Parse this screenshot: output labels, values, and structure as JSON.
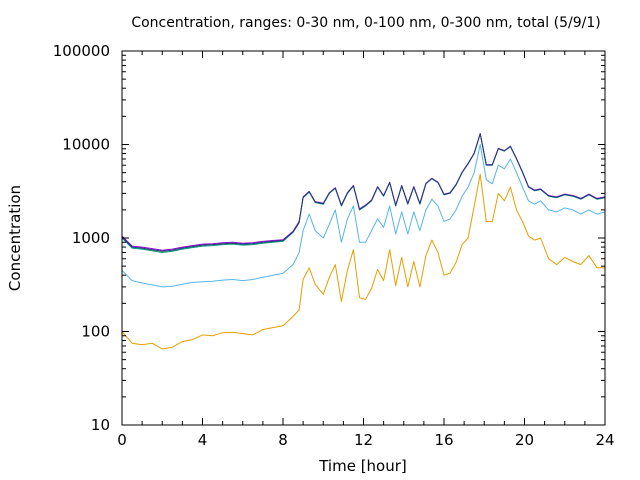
{
  "chart_data": {
    "type": "line",
    "title": "Concentration, ranges: 0-30 nm, 0-100 nm, 0-300 nm, total (5/9/1)",
    "xlabel": "Time [hour]",
    "ylabel": "Concentration",
    "xlim": [
      0,
      24
    ],
    "ylim": [
      10,
      100000
    ],
    "yscale": "log",
    "grid": false,
    "x_ticks": [
      "0",
      "4",
      "8",
      "12",
      "16",
      "20",
      "24"
    ],
    "y_ticks": [
      "10",
      "100",
      "1000",
      "10000",
      "100000"
    ],
    "x": [
      0,
      0.5,
      1,
      1.5,
      2,
      2.5,
      3,
      3.5,
      4,
      4.5,
      5,
      5.5,
      6,
      6.5,
      7,
      7.5,
      8,
      8.5,
      8.8,
      9,
      9.3,
      9.6,
      10,
      10.3,
      10.6,
      10.9,
      11.2,
      11.5,
      11.8,
      12.1,
      12.4,
      12.7,
      13,
      13.3,
      13.6,
      13.9,
      14.2,
      14.5,
      14.8,
      15.1,
      15.4,
      15.7,
      16,
      16.3,
      16.6,
      16.9,
      17.2,
      17.5,
      17.8,
      18.1,
      18.4,
      18.7,
      19,
      19.3,
      19.6,
      19.9,
      20.2,
      20.5,
      20.8,
      21.2,
      21.6,
      22,
      22.4,
      22.8,
      23.2,
      23.6,
      24
    ],
    "series": [
      {
        "color": "#e69f00",
        "values": [
          100,
          75,
          72,
          75,
          65,
          68,
          78,
          82,
          92,
          90,
          97,
          98,
          95,
          92,
          105,
          110,
          115,
          145,
          170,
          360,
          480,
          320,
          250,
          380,
          520,
          210,
          450,
          750,
          230,
          220,
          290,
          460,
          350,
          750,
          310,
          620,
          300,
          560,
          300,
          650,
          950,
          700,
          400,
          420,
          550,
          850,
          1000,
          2200,
          4800,
          1500,
          1500,
          3000,
          2500,
          3500,
          2000,
          1500,
          1050,
          950,
          1000,
          600,
          520,
          620,
          560,
          520,
          650,
          480,
          480
        ]
      },
      {
        "color": "#56b4e9",
        "values": [
          450,
          350,
          330,
          315,
          300,
          305,
          320,
          335,
          340,
          345,
          355,
          360,
          350,
          360,
          380,
          400,
          420,
          520,
          700,
          1200,
          1800,
          1200,
          1000,
          1400,
          2000,
          900,
          1600,
          2200,
          900,
          900,
          1200,
          1600,
          1300,
          2200,
          1100,
          1900,
          1100,
          1900,
          1200,
          2000,
          2600,
          2200,
          1500,
          1600,
          2000,
          2800,
          3500,
          5000,
          10000,
          4200,
          3800,
          6000,
          5500,
          7000,
          5000,
          3500,
          2500,
          2300,
          2500,
          2000,
          1900,
          2100,
          2000,
          1800,
          2000,
          1800,
          1900
        ]
      },
      {
        "color": "#009e73",
        "values": [
          1000,
          780,
          760,
          730,
          700,
          720,
          760,
          790,
          820,
          830,
          850,
          860,
          840,
          850,
          880,
          900,
          920,
          1150,
          1450,
          2700,
          3100,
          2400,
          2300,
          3000,
          3400,
          2200,
          3000,
          3600,
          2000,
          2200,
          2500,
          3500,
          2800,
          3900,
          2200,
          3600,
          2300,
          3500,
          2300,
          3800,
          4300,
          3900,
          2900,
          3000,
          3700,
          5000,
          6200,
          8000,
          13000,
          6000,
          6000,
          9000,
          8500,
          9500,
          7000,
          5000,
          3500,
          3200,
          3300,
          2800,
          2700,
          2900,
          2800,
          2600,
          2900,
          2600,
          2700
        ]
      },
      {
        "color": "#9400d3",
        "values": [
          1050,
          820,
          800,
          770,
          740,
          760,
          800,
          830,
          860,
          870,
          890,
          900,
          880,
          890,
          920,
          940,
          960,
          1180,
          1500,
          2750,
          3150,
          2450,
          2350,
          3050,
          3450,
          2250,
          3050,
          3650,
          2050,
          2250,
          2550,
          3550,
          2850,
          3950,
          2250,
          3650,
          2350,
          3550,
          2350,
          3850,
          4350,
          3950,
          2950,
          3050,
          3750,
          5050,
          6300,
          8100,
          13100,
          6100,
          6100,
          9100,
          8600,
          9600,
          7100,
          5100,
          3550,
          3250,
          3350,
          2850,
          2750,
          2950,
          2850,
          2650,
          2950,
          2650,
          2750
        ]
      },
      {
        "color": "#1f3f7a",
        "values": [
          1020,
          800,
          780,
          750,
          720,
          740,
          780,
          810,
          840,
          850,
          870,
          880,
          860,
          870,
          900,
          920,
          940,
          1160,
          1470,
          2720,
          3120,
          2420,
          2320,
          3020,
          3420,
          2220,
          3020,
          3620,
          2020,
          2220,
          2520,
          3520,
          2820,
          3920,
          2220,
          3620,
          2320,
          3520,
          2320,
          3820,
          4320,
          3920,
          2920,
          3020,
          3720,
          5020,
          6250,
          8050,
          13050,
          6050,
          6050,
          9050,
          8550,
          9550,
          7050,
          5050,
          3520,
          3220,
          3320,
          2820,
          2720,
          2920,
          2820,
          2620,
          2920,
          2620,
          2720
        ]
      }
    ]
  }
}
